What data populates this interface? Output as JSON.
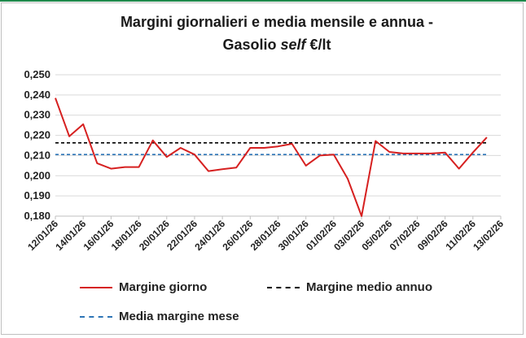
{
  "title_line1": "Margini giornalieri e media mensile e annua -",
  "title_line2_prefix": "Gasolio ",
  "title_line2_italic": "self",
  "title_line2_suffix": " €/lt",
  "colors": {
    "daily": "#d62020",
    "annual": "#000000",
    "monthly": "#2e75b6",
    "frame": "#1f8a4c"
  },
  "chart_data": {
    "type": "line",
    "title": "Margini giornalieri e media mensile e annua - Gasolio self €/lt",
    "xlabel": "",
    "ylabel": "",
    "ylim": [
      0.18,
      0.25
    ],
    "y_ticks": [
      "0,180",
      "0,190",
      "0,200",
      "0,210",
      "0,220",
      "0,230",
      "0,240",
      "0,250"
    ],
    "x_ticks": [
      "12/01/26",
      "14/01/26",
      "16/01/26",
      "18/01/26",
      "20/01/26",
      "22/01/26",
      "24/01/26",
      "26/01/26",
      "28/01/26",
      "30/01/26",
      "01/02/26",
      "03/02/26",
      "05/02/26",
      "07/02/26",
      "09/02/26",
      "11/02/26",
      "13/02/26"
    ],
    "grid": "horizontal",
    "legend_position": "bottom",
    "series": [
      {
        "name": "Margine giorno",
        "style": "solid",
        "points": [
          [
            "12/01/26",
            0.2385
          ],
          [
            "13/01/26",
            0.2195
          ],
          [
            "14/01/26",
            0.2255
          ],
          [
            "15/01/26",
            0.2062
          ],
          [
            "16/01/26",
            0.2035
          ],
          [
            "17/01/26",
            0.2043
          ],
          [
            "18/01/26",
            0.2043
          ],
          [
            "19/01/26",
            0.2175
          ],
          [
            "20/01/26",
            0.2093
          ],
          [
            "21/01/26",
            0.2138
          ],
          [
            "22/01/26",
            0.2105
          ],
          [
            "23/01/26",
            0.2023
          ],
          [
            "24/01/26",
            0.2032
          ],
          [
            "25/01/26",
            0.204
          ],
          [
            "26/01/26",
            0.2138
          ],
          [
            "27/01/26",
            0.2138
          ],
          [
            "28/01/26",
            0.2145
          ],
          [
            "29/01/26",
            0.2158
          ],
          [
            "30/01/26",
            0.205
          ],
          [
            "31/01/26",
            0.21
          ],
          [
            "01/02/26",
            0.2105
          ],
          [
            "02/02/26",
            0.1985
          ],
          [
            "03/02/26",
            0.18
          ],
          [
            "04/02/26",
            0.2172
          ],
          [
            "05/02/26",
            0.2118
          ],
          [
            "06/02/26",
            0.211
          ],
          [
            "07/02/26",
            0.211
          ],
          [
            "08/02/26",
            0.211
          ],
          [
            "09/02/26",
            0.2115
          ],
          [
            "10/02/26",
            0.2035
          ],
          [
            "11/02/26",
            0.2115
          ],
          [
            "12/02/26",
            0.219
          ]
        ]
      },
      {
        "name": "Margine medio annuo",
        "style": "dashed",
        "value": 0.2163,
        "from": "12/01/26",
        "to": "12/02/26"
      },
      {
        "name": "Media margine mese",
        "style": "dashed",
        "value": 0.2105,
        "from": "12/01/26",
        "to": "12/02/26"
      }
    ]
  }
}
